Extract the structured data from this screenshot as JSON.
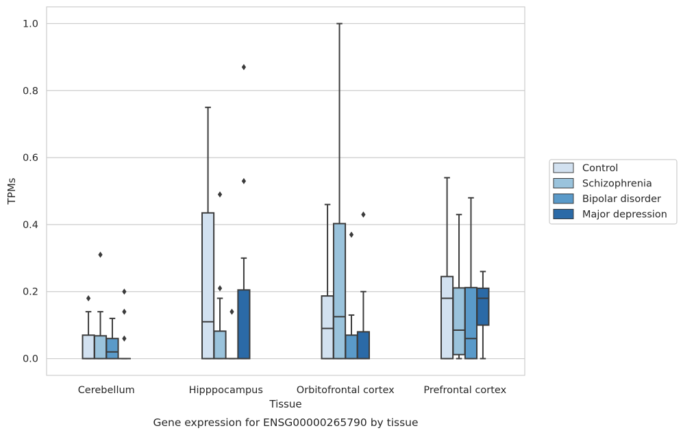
{
  "chart_data": {
    "type": "boxplot",
    "title": "",
    "caption": "Gene expression for ENSG00000265790 by tissue",
    "xlabel": "Tissue",
    "ylabel": "TPMs",
    "ylim": [
      -0.05,
      1.05
    ],
    "yticks": [
      0.0,
      0.2,
      0.4,
      0.6,
      0.8,
      1.0
    ],
    "ytick_labels": [
      "0.0",
      "0.2",
      "0.4",
      "0.6",
      "0.8",
      "1.0"
    ],
    "grid": "horizontal",
    "legend_position": "right, outside plot",
    "categories": [
      "Cerebellum",
      "Hipppocampus",
      "Orbitofrontal cortex",
      "Prefrontal cortex"
    ],
    "series": [
      {
        "name": "Control",
        "color": "#d2e1f0",
        "boxes": [
          {
            "whislo": 0.0,
            "q1": 0.0,
            "med": 0.0,
            "q3": 0.07,
            "whishi": 0.14,
            "fliers": [
              0.18
            ]
          },
          {
            "whislo": 0.0,
            "q1": 0.0,
            "med": 0.11,
            "q3": 0.435,
            "whishi": 0.75,
            "fliers": []
          },
          {
            "whislo": 0.0,
            "q1": 0.0,
            "med": 0.09,
            "q3": 0.187,
            "whishi": 0.46,
            "fliers": []
          },
          {
            "whislo": 0.0,
            "q1": 0.0,
            "med": 0.18,
            "q3": 0.245,
            "whishi": 0.54,
            "fliers": []
          }
        ]
      },
      {
        "name": "Schizophrenia",
        "color": "#9ac3dc",
        "boxes": [
          {
            "whislo": 0.0,
            "q1": 0.0,
            "med": 0.0,
            "q3": 0.068,
            "whishi": 0.14,
            "fliers": [
              0.31
            ]
          },
          {
            "whislo": 0.0,
            "q1": 0.0,
            "med": 0.0,
            "q3": 0.082,
            "whishi": 0.18,
            "fliers": [
              0.21,
              0.49
            ]
          },
          {
            "whislo": 0.0,
            "q1": 0.0,
            "med": 0.125,
            "q3": 0.403,
            "whishi": 1.0,
            "fliers": []
          },
          {
            "whislo": 0.0,
            "q1": 0.012,
            "med": 0.085,
            "q3": 0.211,
            "whishi": 0.43,
            "fliers": []
          }
        ]
      },
      {
        "name": "Bipolar disorder",
        "color": "#5a9ac9",
        "boxes": [
          {
            "whislo": 0.0,
            "q1": 0.0,
            "med": 0.02,
            "q3": 0.06,
            "whishi": 0.12,
            "fliers": []
          },
          {
            "whislo": 0.0,
            "q1": 0.0,
            "med": 0.0,
            "q3": 0.0,
            "whishi": 0.0,
            "fliers": [
              0.14
            ]
          },
          {
            "whislo": 0.0,
            "q1": 0.0,
            "med": 0.0,
            "q3": 0.07,
            "whishi": 0.13,
            "fliers": [
              0.37
            ]
          },
          {
            "whislo": 0.0,
            "q1": 0.0,
            "med": 0.06,
            "q3": 0.212,
            "whishi": 0.48,
            "fliers": []
          }
        ]
      },
      {
        "name": "Major depression",
        "color": "#2b6aa7",
        "boxes": [
          {
            "whislo": 0.0,
            "q1": 0.0,
            "med": 0.0,
            "q3": 0.0,
            "whishi": 0.0,
            "fliers": [
              0.06,
              0.14,
              0.2
            ]
          },
          {
            "whislo": 0.0,
            "q1": 0.0,
            "med": 0.0,
            "q3": 0.205,
            "whishi": 0.3,
            "fliers": [
              0.53,
              0.87
            ]
          },
          {
            "whislo": 0.0,
            "q1": 0.0,
            "med": 0.0,
            "q3": 0.08,
            "whishi": 0.2,
            "fliers": [
              0.43
            ]
          },
          {
            "whislo": 0.0,
            "q1": 0.1,
            "med": 0.18,
            "q3": 0.21,
            "whishi": 0.26,
            "fliers": []
          }
        ]
      }
    ]
  },
  "style": {
    "grid_color": "#cccccc",
    "frame_color": "#cccccc",
    "line_color": "#3b3b3b",
    "text_color": "#262626"
  }
}
